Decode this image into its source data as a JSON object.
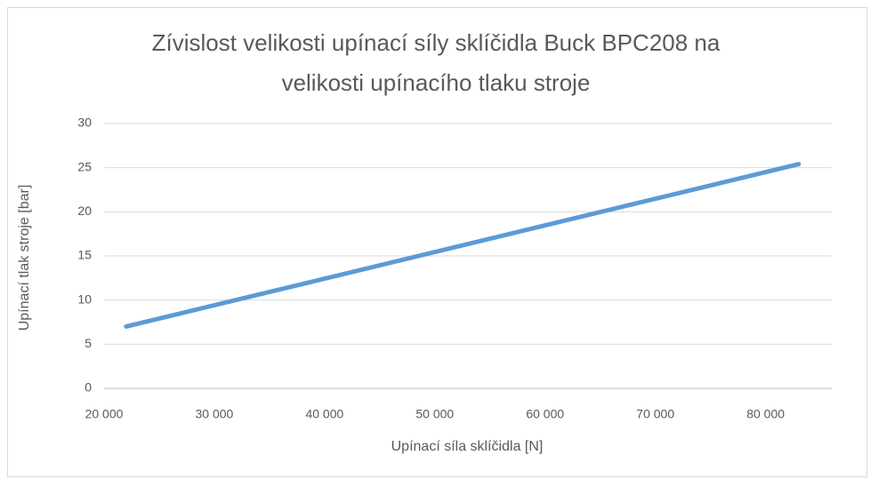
{
  "chart_data": {
    "type": "line",
    "title": [
      "Zívislost velikosti upínací síly sklíčidla Buck BPC208 na",
      "velikosti upínacího tlaku stroje"
    ],
    "x_label": "Upínací síla sklíčidla [N]",
    "y_label": "Upínací tlak stroje [bar]",
    "x": [
      22000,
      83000
    ],
    "series": [
      {
        "name": "Upínací tlak stroje",
        "color": "#5b9bd5",
        "values": [
          7,
          25.4
        ]
      }
    ],
    "xlim": [
      20000,
      86000
    ],
    "xticks": [
      {
        "value": 20000,
        "label": "20 000"
      },
      {
        "value": 30000,
        "label": "30 000"
      },
      {
        "value": 40000,
        "label": "40 000"
      },
      {
        "value": 50000,
        "label": "50 000"
      },
      {
        "value": 60000,
        "label": "60 000"
      },
      {
        "value": 70000,
        "label": "70 000"
      },
      {
        "value": 80000,
        "label": "80 000"
      }
    ],
    "ylim": [
      0,
      30
    ],
    "yticks": [
      0,
      5,
      10,
      15,
      20,
      25,
      30
    ],
    "grid": true
  }
}
